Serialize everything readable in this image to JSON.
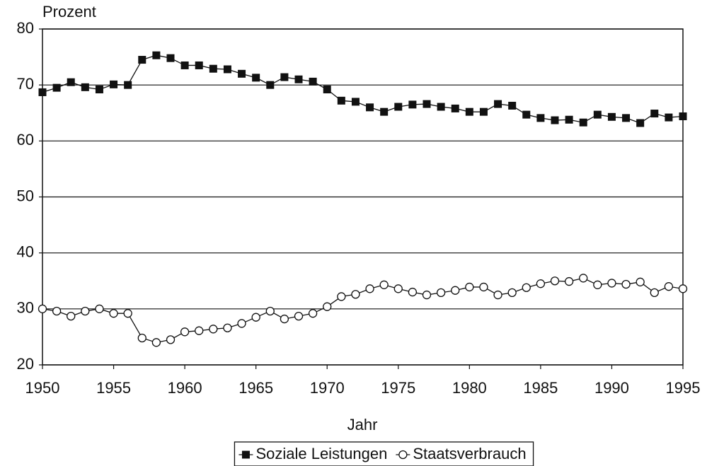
{
  "chart_data": {
    "type": "line",
    "y_label": "Prozent",
    "x_label": "Jahr",
    "x": [
      1950,
      1951,
      1952,
      1953,
      1954,
      1955,
      1956,
      1957,
      1958,
      1959,
      1960,
      1961,
      1962,
      1963,
      1964,
      1965,
      1966,
      1967,
      1968,
      1969,
      1970,
      1971,
      1972,
      1973,
      1974,
      1975,
      1976,
      1977,
      1978,
      1979,
      1980,
      1981,
      1982,
      1983,
      1984,
      1985,
      1986,
      1987,
      1988,
      1989,
      1990,
      1991,
      1992,
      1993,
      1994,
      1995
    ],
    "series": [
      {
        "name": "Soziale Leistungen",
        "color": "#111111",
        "marker": "filled-square",
        "values": [
          68.7,
          69.5,
          70.5,
          69.6,
          69.2,
          70.1,
          70.0,
          74.5,
          75.3,
          74.8,
          73.5,
          73.5,
          72.9,
          72.8,
          72.0,
          71.3,
          70.0,
          71.4,
          71.0,
          70.6,
          69.2,
          67.2,
          67.0,
          66.0,
          65.2,
          66.1,
          66.5,
          66.6,
          66.1,
          65.8,
          65.2,
          65.2,
          66.6,
          66.3,
          64.7,
          64.1,
          63.7,
          63.8,
          63.3,
          64.7,
          64.3,
          64.1,
          63.2,
          64.9,
          64.2,
          64.4
        ]
      },
      {
        "name": "Staatsverbrauch",
        "color": "#111111",
        "marker": "open-circle",
        "values": [
          30.0,
          29.6,
          28.7,
          29.6,
          30.0,
          29.2,
          29.2,
          24.8,
          24.0,
          24.5,
          25.9,
          26.1,
          26.4,
          26.6,
          27.4,
          28.5,
          29.6,
          28.2,
          28.7,
          29.2,
          30.4,
          32.2,
          32.6,
          33.6,
          34.3,
          33.6,
          33.0,
          32.5,
          32.9,
          33.3,
          33.9,
          33.9,
          32.5,
          32.9,
          33.8,
          34.5,
          35.0,
          34.9,
          35.5,
          34.3,
          34.6,
          34.4,
          34.8,
          32.9,
          34.0,
          33.6
        ]
      }
    ],
    "xlim": [
      1950,
      1995
    ],
    "xticks": [
      1950,
      1955,
      1960,
      1965,
      1970,
      1975,
      1980,
      1985,
      1990,
      1995
    ],
    "ylim": [
      20,
      80
    ],
    "yticks": [
      20,
      30,
      40,
      50,
      60,
      70,
      80
    ],
    "grid": true,
    "legend": "bottom"
  }
}
